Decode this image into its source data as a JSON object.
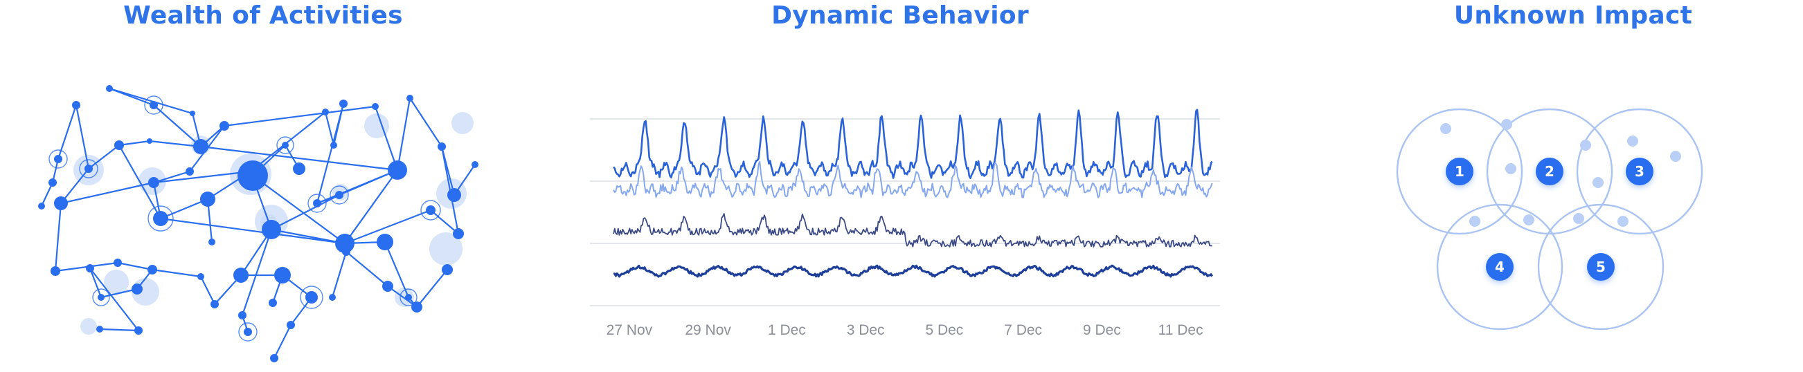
{
  "panels": {
    "network": {
      "title": "Wealth of Activities"
    },
    "dynamic": {
      "title": "Dynamic Behavior"
    },
    "impact": {
      "title": "Unknown Impact"
    }
  },
  "colors": {
    "accent": "#2f73e8",
    "node": "#2a6ef0",
    "halo": "#c9dbf8",
    "grid": "#e3e6ea",
    "series_1": "#2a63d8",
    "series_2": "#86a8ee",
    "series_3": "#3b4a86",
    "series_4": "#1d3f9a",
    "venn_ring": "#a9c3f3",
    "venn_dot": "#b9cff6"
  },
  "chart_data": {
    "type": "line",
    "x_tick_labels": [
      "27 Nov",
      "29 Nov",
      "1 Dec",
      "3 Dec",
      "5 Dec",
      "7 Dec",
      "9 Dec",
      "11 Dec"
    ],
    "x_range": [
      "26 Nov",
      "12 Dec"
    ],
    "y_axis_labels_shown": false,
    "grid": "horizontal",
    "gridline_count": 4,
    "series_count": 4,
    "legend": "none"
  },
  "venn": {
    "circles": [
      {
        "label": "1"
      },
      {
        "label": "2"
      },
      {
        "label": "3"
      },
      {
        "label": "4"
      },
      {
        "label": "5"
      }
    ]
  }
}
